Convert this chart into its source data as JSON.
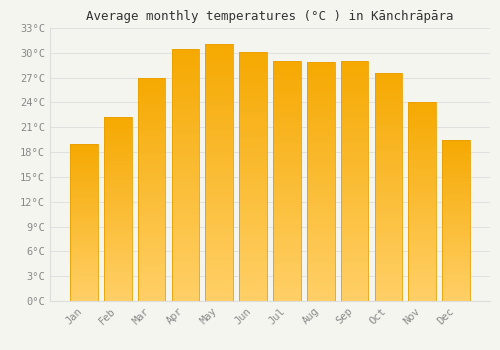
{
  "months": [
    "Jan",
    "Feb",
    "Mar",
    "Apr",
    "May",
    "Jun",
    "Jul",
    "Aug",
    "Sep",
    "Oct",
    "Nov",
    "Dec"
  ],
  "values": [
    19.0,
    22.2,
    27.0,
    30.5,
    31.1,
    30.1,
    29.0,
    28.9,
    29.0,
    27.6,
    24.1,
    19.5
  ],
  "bar_color_top": "#F5A800",
  "bar_color_bottom": "#FFCF66",
  "bar_edge_color": "#E8A000",
  "title": "Average monthly temperatures (°C ) in Kānchrāpāra",
  "ylim": [
    0,
    33
  ],
  "ytick_step": 3,
  "background_color": "#F5F5F0",
  "grid_color": "#DDDDDD",
  "title_fontsize": 9,
  "tick_fontsize": 7.5,
  "tick_label_color": "#888888",
  "title_color": "#333333"
}
